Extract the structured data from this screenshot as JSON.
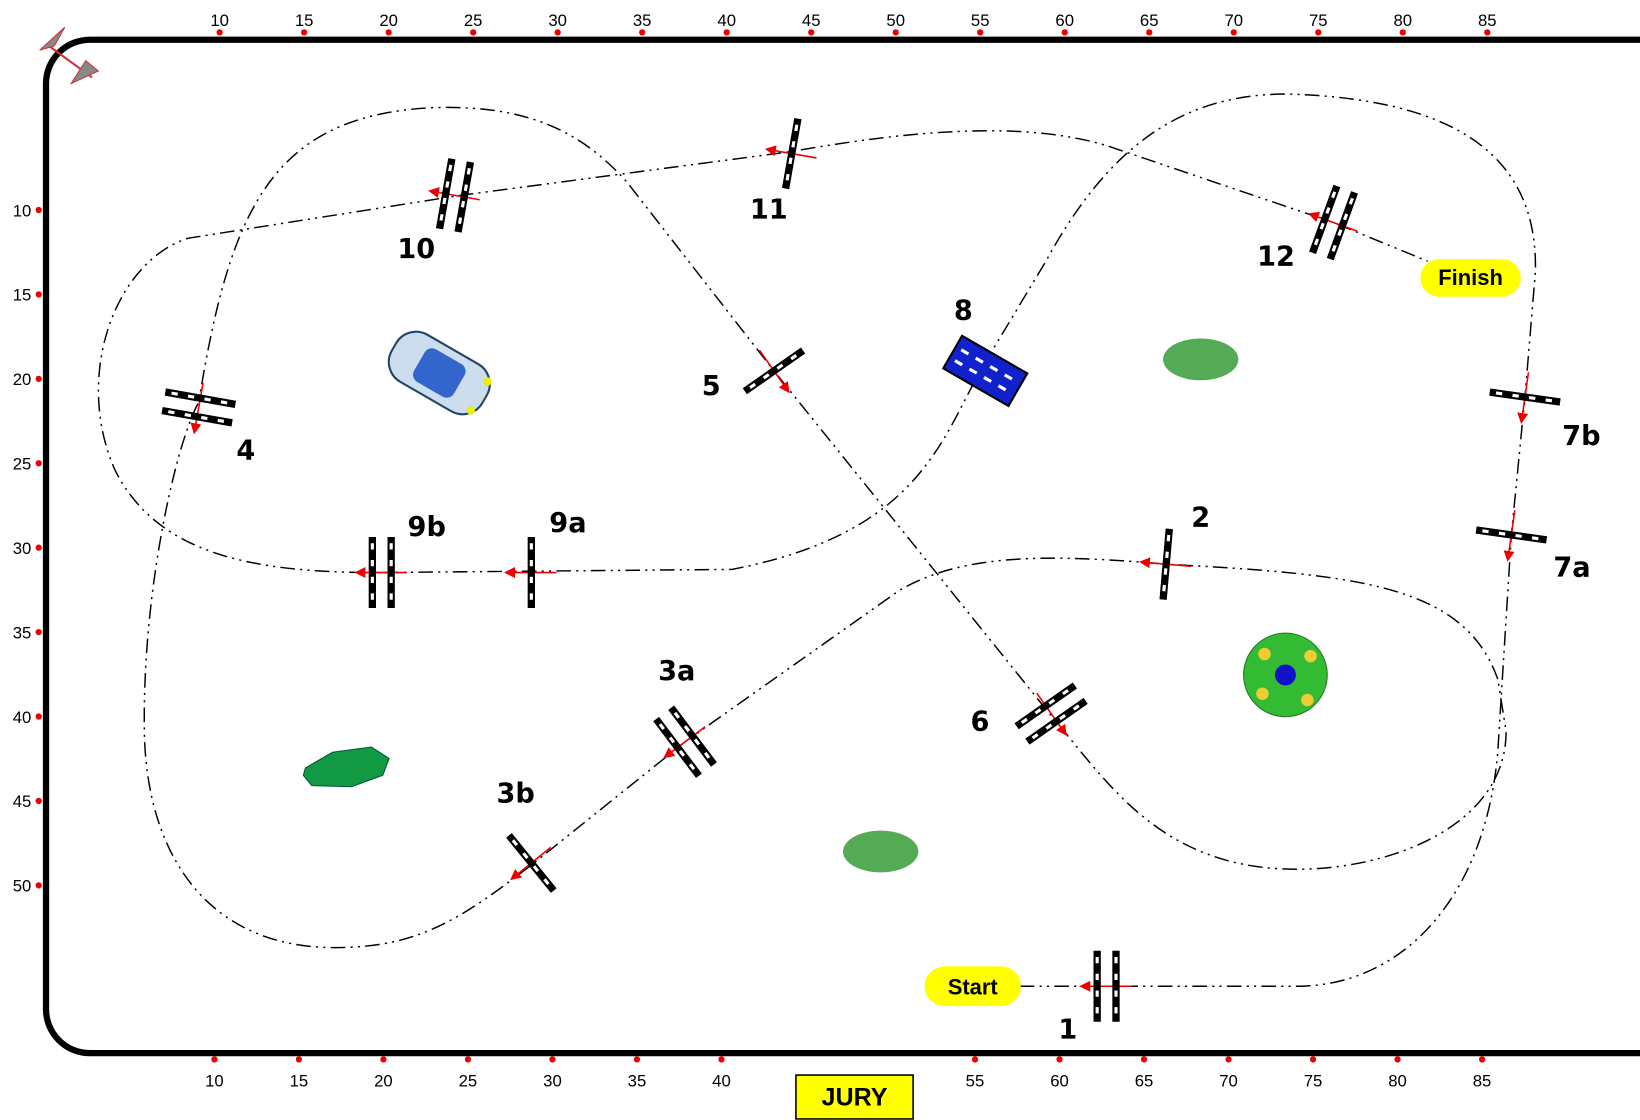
{
  "scale": {
    "top": [
      10,
      15,
      20,
      25,
      30,
      35,
      40,
      45,
      50,
      55,
      60,
      65,
      70,
      75,
      80,
      85
    ],
    "bottom": [
      10,
      15,
      20,
      25,
      30,
      35,
      40,
      55,
      60,
      65,
      70,
      75,
      80,
      85
    ],
    "left": [
      10,
      15,
      20,
      25,
      30,
      35,
      40,
      45,
      50
    ]
  },
  "obstacles": [
    "1",
    "2",
    "3a",
    "3b",
    "4",
    "5",
    "6",
    "7a",
    "7b",
    "8",
    "9a",
    "9b",
    "10",
    "11",
    "12"
  ],
  "start": "Start",
  "finish": "Finish",
  "jury": "JURY"
}
